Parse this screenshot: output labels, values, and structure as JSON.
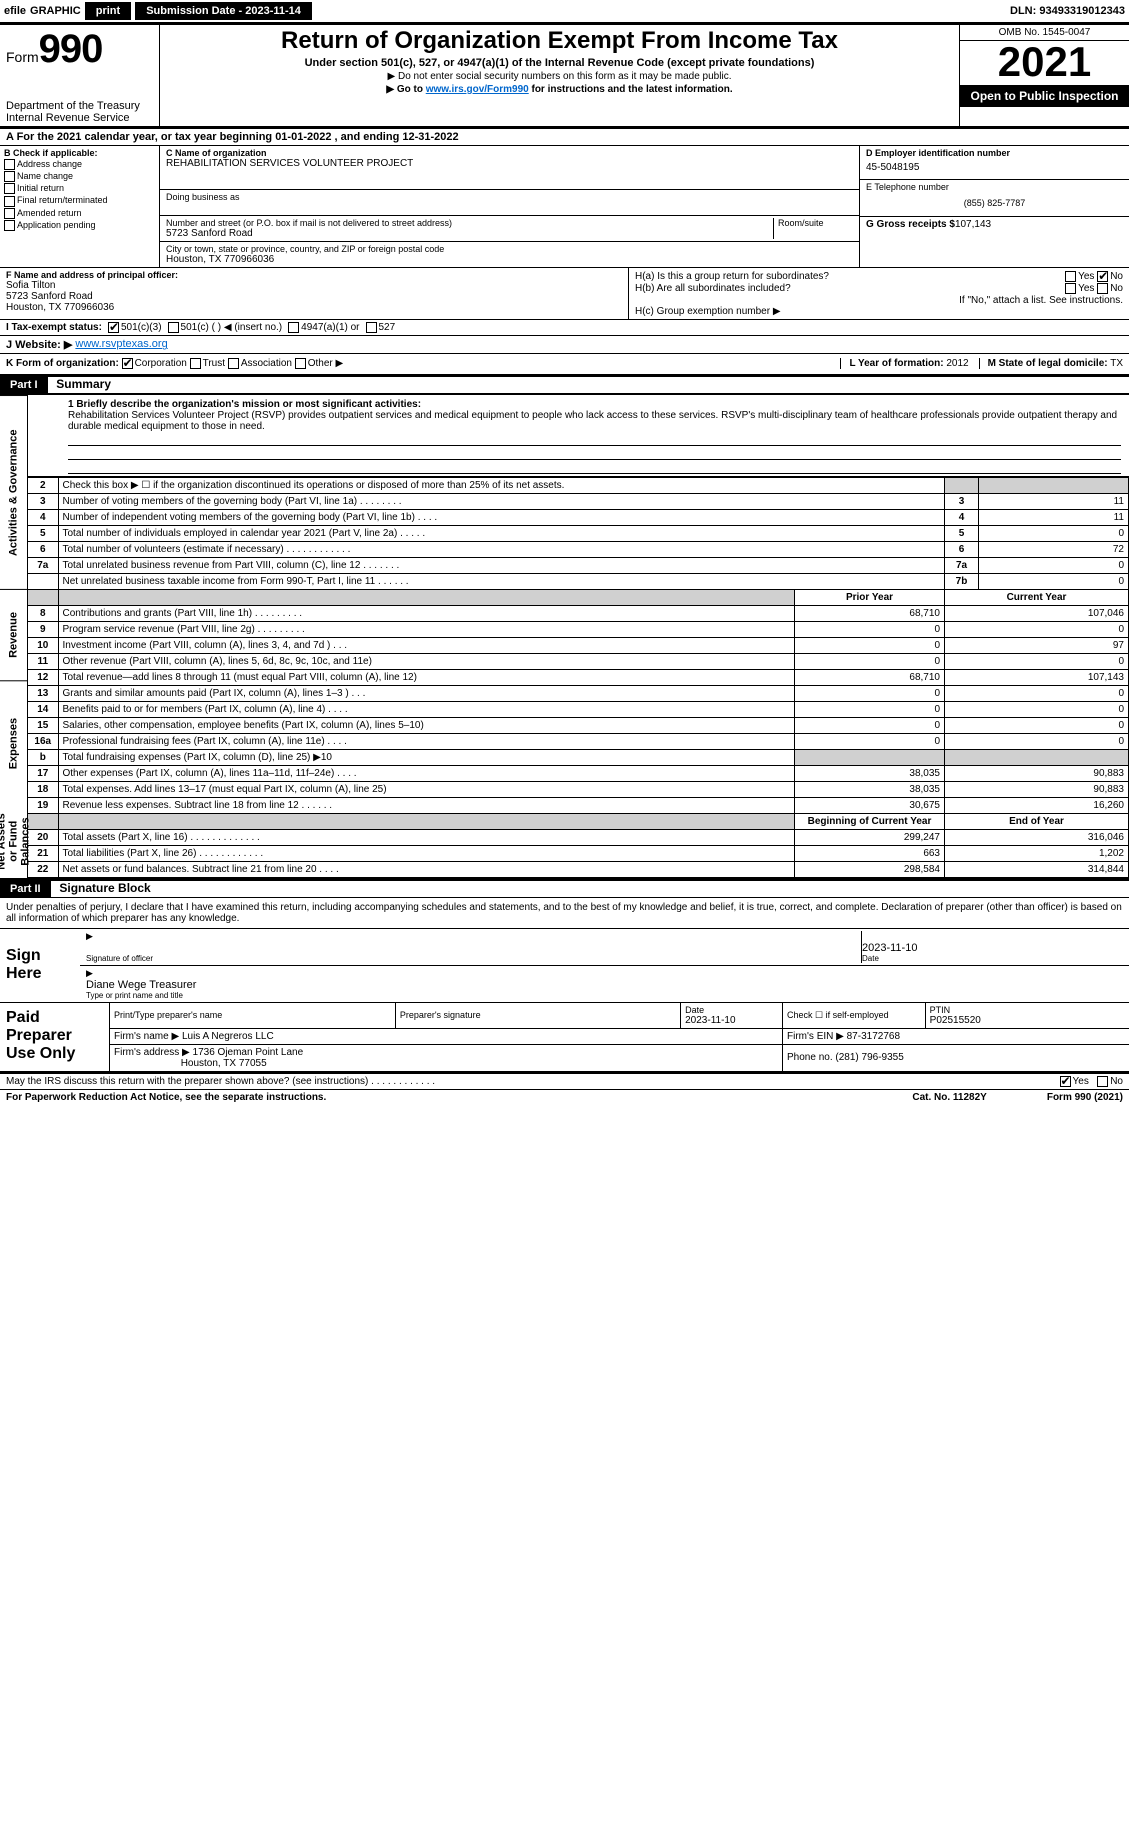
{
  "topbar": {
    "efile_prefix": "efile",
    "efile_label": "GRAPHIC",
    "efile_print": "print",
    "submission_label": "Submission Date - 2023-11-14",
    "dln": "DLN: 93493319012343"
  },
  "header": {
    "form_word": "Form",
    "form_num": "990",
    "dept1": "Department of the Treasury",
    "dept2": "Internal Revenue Service",
    "title": "Return of Organization Exempt From Income Tax",
    "subtitle": "Under section 501(c), 527, or 4947(a)(1) of the Internal Revenue Code (except private foundations)",
    "note1": "▶ Do not enter social security numbers on this form as it may be made public.",
    "note2_pre": "▶ Go to ",
    "note2_link": "www.irs.gov/Form990",
    "note2_post": " for instructions and the latest information.",
    "omb": "OMB No. 1545-0047",
    "year": "2021",
    "open": "Open to Public Inspection"
  },
  "line_a": "A For the 2021 calendar year, or tax year beginning 01-01-2022    , and ending 12-31-2022",
  "col_b": {
    "hdr": "B Check if applicable:",
    "opts": [
      "Address change",
      "Name change",
      "Initial return",
      "Final return/terminated",
      "Amended return",
      "Application pending"
    ]
  },
  "col_c": {
    "name_lbl": "C Name of organization",
    "name": "REHABILITATION SERVICES VOLUNTEER PROJECT",
    "dba_lbl": "Doing business as",
    "dba": "",
    "addr_lbl": "Number and street (or P.O. box if mail is not delivered to street address)",
    "room_lbl": "Room/suite",
    "addr1": "5723 Sanford Road",
    "city_lbl": "City or town, state or province, country, and ZIP or foreign postal code",
    "city": "Houston, TX  770966036"
  },
  "col_d": {
    "ein_lbl": "D Employer identification number",
    "ein": "45-5048195",
    "tel_lbl": "E Telephone number",
    "tel": "(855) 825-7787",
    "gross_lbl": "G Gross receipts $",
    "gross": "107,143"
  },
  "block_f": {
    "lbl": "F Name and address of principal officer:",
    "name": "Sofia Tilton",
    "addr1": "5723 Sanford Road",
    "addr2": "Houston, TX  770966036"
  },
  "block_h": {
    "ha": "H(a)  Is this a group return for subordinates?",
    "ha_yes": "Yes",
    "ha_no": "No",
    "hb": "H(b)  Are all subordinates included?",
    "hb_yes": "Yes",
    "hb_no": "No",
    "hb_note": "If \"No,\" attach a list. See instructions.",
    "hc": "H(c)  Group exemption number ▶"
  },
  "row_i": {
    "lbl": "I Tax-exempt status:",
    "o1": "501(c)(3)",
    "o2": "501(c) (   ) ◀ (insert no.)",
    "o3": "4947(a)(1) or",
    "o4": "527"
  },
  "row_j": {
    "lbl": "J Website: ▶",
    "val": "www.rsvptexas.org"
  },
  "row_k": {
    "lbl": "K Form of organization:",
    "o1": "Corporation",
    "o2": "Trust",
    "o3": "Association",
    "o4": "Other ▶",
    "l_lbl": "L Year of formation:",
    "l_val": "2012",
    "m_lbl": "M State of legal domicile:",
    "m_val": "TX"
  },
  "part1": {
    "tag": "Part I",
    "title": "Summary",
    "l1_lbl": "1 Briefly describe the organization's mission or most significant activities:",
    "l1_txt": "Rehabilitation Services Volunteer Project (RSVP) provides outpatient services and medical equipment to people who lack access to these services. RSVP's multi-disciplinary team of healthcare professionals provide outpatient therapy and durable medical equipment to those in need.",
    "l2": "Check this box ▶ ☐  if the organization discontinued its operations or disposed of more than 25% of its net assets.",
    "rows_single": [
      {
        "n": "3",
        "t": "Number of voting members of the governing body (Part VI, line 1a)   .    .    .    .    .    .    .    .",
        "r": "3",
        "v": "11"
      },
      {
        "n": "4",
        "t": "Number of independent voting members of the governing body (Part VI, line 1b)   .    .    .    .",
        "r": "4",
        "v": "11"
      },
      {
        "n": "5",
        "t": "Total number of individuals employed in calendar year 2021 (Part V, line 2a)   .    .    .    .    .",
        "r": "5",
        "v": "0"
      },
      {
        "n": "6",
        "t": "Total number of volunteers (estimate if necessary)    .    .    .    .    .    .    .    .    .    .    .    .",
        "r": "6",
        "v": "72"
      },
      {
        "n": "7a",
        "t": "Total unrelated business revenue from Part VIII, column (C), line 12   .    .    .    .    .    .    .",
        "r": "7a",
        "v": "0"
      },
      {
        "n": "",
        "t": "Net unrelated business taxable income from Form 990-T, Part I, line 11   .    .    .    .    .    .",
        "r": "7b",
        "v": "0"
      }
    ],
    "col_hdr_prior": "Prior Year",
    "col_hdr_curr": "Current Year",
    "rev_rows": [
      {
        "n": "8",
        "t": "Contributions and grants (Part VIII, line 1h)   .    .    .    .    .    .    .    .    .",
        "p": "68,710",
        "c": "107,046"
      },
      {
        "n": "9",
        "t": "Program service revenue (Part VIII, line 2g)   .    .    .    .    .    .    .    .    .",
        "p": "0",
        "c": "0"
      },
      {
        "n": "10",
        "t": "Investment income (Part VIII, column (A), lines 3, 4, and 7d )    .    .    .",
        "p": "0",
        "c": "97"
      },
      {
        "n": "11",
        "t": "Other revenue (Part VIII, column (A), lines 5, 6d, 8c, 9c, 10c, and 11e)",
        "p": "0",
        "c": "0"
      },
      {
        "n": "12",
        "t": "Total revenue—add lines 8 through 11 (must equal Part VIII, column (A), line 12)",
        "p": "68,710",
        "c": "107,143"
      }
    ],
    "exp_rows": [
      {
        "n": "13",
        "t": "Grants and similar amounts paid (Part IX, column (A), lines 1–3 )   .    .    .",
        "p": "0",
        "c": "0"
      },
      {
        "n": "14",
        "t": "Benefits paid to or for members (Part IX, column (A), line 4)   .    .    .    .",
        "p": "0",
        "c": "0"
      },
      {
        "n": "15",
        "t": "Salaries, other compensation, employee benefits (Part IX, column (A), lines 5–10)",
        "p": "0",
        "c": "0"
      },
      {
        "n": "16a",
        "t": "Professional fundraising fees (Part IX, column (A), line 11e)   .    .    .    .",
        "p": "0",
        "c": "0"
      },
      {
        "n": "b",
        "t": "Total fundraising expenses (Part IX, column (D), line 25) ▶10",
        "p": "",
        "c": "",
        "grey": true
      },
      {
        "n": "17",
        "t": "Other expenses (Part IX, column (A), lines 11a–11d, 11f–24e)    .    .    .    .",
        "p": "38,035",
        "c": "90,883"
      },
      {
        "n": "18",
        "t": "Total expenses. Add lines 13–17 (must equal Part IX, column (A), line 25)",
        "p": "38,035",
        "c": "90,883"
      },
      {
        "n": "19",
        "t": "Revenue less expenses. Subtract line 18 from line 12   .    .    .    .    .    .",
        "p": "30,675",
        "c": "16,260"
      }
    ],
    "bal_hdr_b": "Beginning of Current Year",
    "bal_hdr_e": "End of Year",
    "bal_rows": [
      {
        "n": "20",
        "t": "Total assets (Part X, line 16)   .    .    .    .    .    .    .    .    .    .    .    .    .",
        "p": "299,247",
        "c": "316,046"
      },
      {
        "n": "21",
        "t": "Total liabilities (Part X, line 26)   .    .    .    .    .    .    .    .    .    .    .    .",
        "p": "663",
        "c": "1,202"
      },
      {
        "n": "22",
        "t": "Net assets or fund balances. Subtract line 21 from line 20    .    .    .    .",
        "p": "298,584",
        "c": "314,844"
      }
    ]
  },
  "part2": {
    "tag": "Part II",
    "title": "Signature Block"
  },
  "sig_intro": "Under penalties of perjury, I declare that I have examined this return, including accompanying schedules and statements, and to the best of my knowledge and belief, it is true, correct, and complete. Declaration of preparer (other than officer) is based on all information of which preparer has any knowledge.",
  "sign": {
    "left1": "Sign",
    "left2": "Here",
    "sig_lbl": "Signature of officer",
    "date_lbl": "Date",
    "date": "2023-11-10",
    "name": "Diane Wege  Treasurer",
    "name_lbl": "Type or print name and title"
  },
  "prep": {
    "left1": "Paid",
    "left2": "Preparer",
    "left3": "Use Only",
    "h1": "Print/Type preparer's name",
    "h2": "Preparer's signature",
    "h3": "Date",
    "h4": "Check ☐ if self-employed",
    "h5": "PTIN",
    "date": "2023-11-10",
    "ptin": "P02515520",
    "firm_lbl": "Firm's name    ▶",
    "firm": "Luis A Negreros LLC",
    "ein_lbl": "Firm's EIN ▶",
    "ein": "87-3172768",
    "addr_lbl": "Firm's address ▶",
    "addr1": "1736 Ojeman Point Lane",
    "addr2": "Houston, TX  77055",
    "phone_lbl": "Phone no.",
    "phone": "(281) 796-9355"
  },
  "footer": {
    "q": "May the IRS discuss this return with the preparer shown above? (see instructions)    .    .    .    .    .    .    .    .    .    .    .    .",
    "yes": "Yes",
    "no": "No",
    "pra": "For Paperwork Reduction Act Notice, see the separate instructions.",
    "cat": "Cat. No. 11282Y",
    "form": "Form 990 (2021)"
  },
  "vtabs": {
    "ag": "Activities & Governance",
    "rev": "Revenue",
    "exp": "Expenses",
    "bal": "Net Assets or Fund Balances"
  }
}
